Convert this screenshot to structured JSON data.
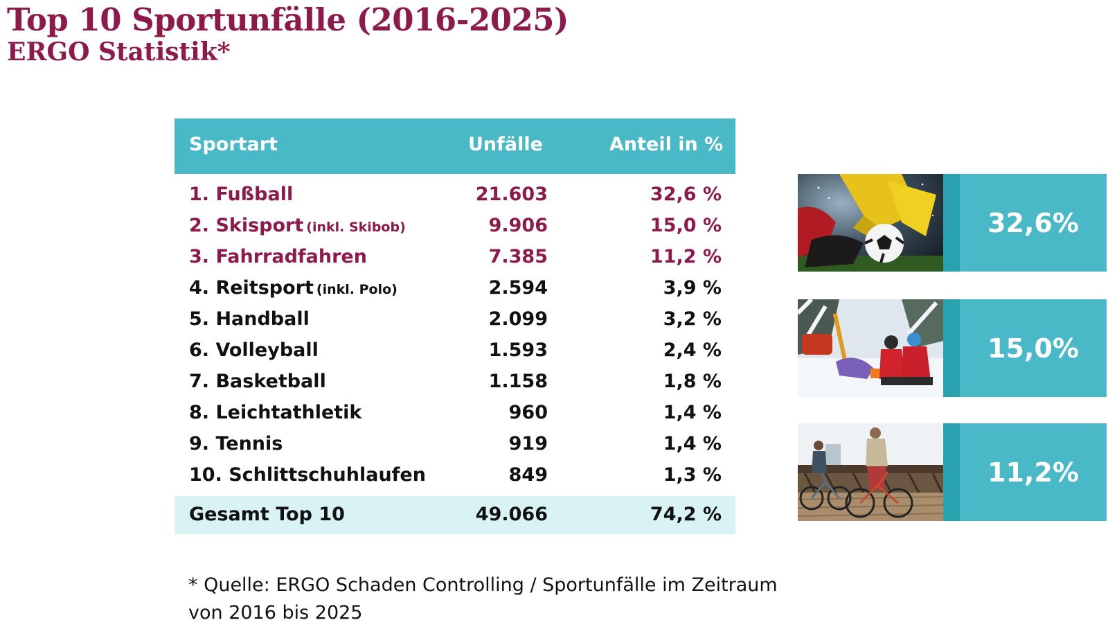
{
  "title": "Top 10 Sportunfälle (2016-2025)",
  "subtitle": "ERGO Statistik*",
  "chart_data": {
    "type": "table",
    "title": "Top 10 Sportunfälle (2016-2025)",
    "subtitle": "ERGO Statistik*",
    "columns": [
      "Sportart",
      "Unfälle",
      "Anteil in %"
    ],
    "rows": [
      {
        "name": "1. Fußball",
        "note": "",
        "value": "21.603",
        "share": "32,6 %",
        "highlight": true
      },
      {
        "name": "2. Skisport",
        "note": "(inkl. Skibob)",
        "value": "9.906",
        "share": "15,0 %",
        "highlight": true
      },
      {
        "name": "3. Fahrradfahren",
        "note": "",
        "value": "7.385",
        "share": "11,2 %",
        "highlight": true
      },
      {
        "name": "4. Reitsport",
        "note": "(inkl. Polo)",
        "value": "2.594",
        "share": "3,9 %",
        "highlight": false
      },
      {
        "name": "5. Handball",
        "note": "",
        "value": "2.099",
        "share": "3,2 %",
        "highlight": false
      },
      {
        "name": "6. Volleyball",
        "note": "",
        "value": "1.593",
        "share": "2,4 %",
        "highlight": false
      },
      {
        "name": "7. Basketball",
        "note": "",
        "value": "1.158",
        "share": "1,8 %",
        "highlight": false
      },
      {
        "name": "8. Leichtathletik",
        "note": "",
        "value": "960",
        "share": "1,4 %",
        "highlight": false
      },
      {
        "name": "9. Tennis",
        "note": "",
        "value": "919",
        "share": "1,4 %",
        "highlight": false
      },
      {
        "name": "10. Schlittschuhlaufen",
        "note": "",
        "value": "849",
        "share": "1,3 %",
        "highlight": false
      }
    ],
    "total": {
      "name": "Gesamt Top 10",
      "value": "49.066",
      "share": "74,2 %"
    }
  },
  "highlights": [
    {
      "value": "32,6%",
      "image": "soccer-tackle-photo"
    },
    {
      "value": "15,0%",
      "image": "ski-rescue-photo"
    },
    {
      "value": "11,2%",
      "image": "cycling-couple-photo"
    }
  ],
  "footnote": {
    "line1": "* Quelle: ERGO Schaden Controlling / Sportunfälle im Zeitraum",
    "line2": "von 2016 bis 2025"
  },
  "colors": {
    "brand": "#8e1a4b",
    "header": "#4ab9c7",
    "accent_strip": "#2aa3b1",
    "total_bg": "#d9f2f4",
    "text": "#111111"
  }
}
